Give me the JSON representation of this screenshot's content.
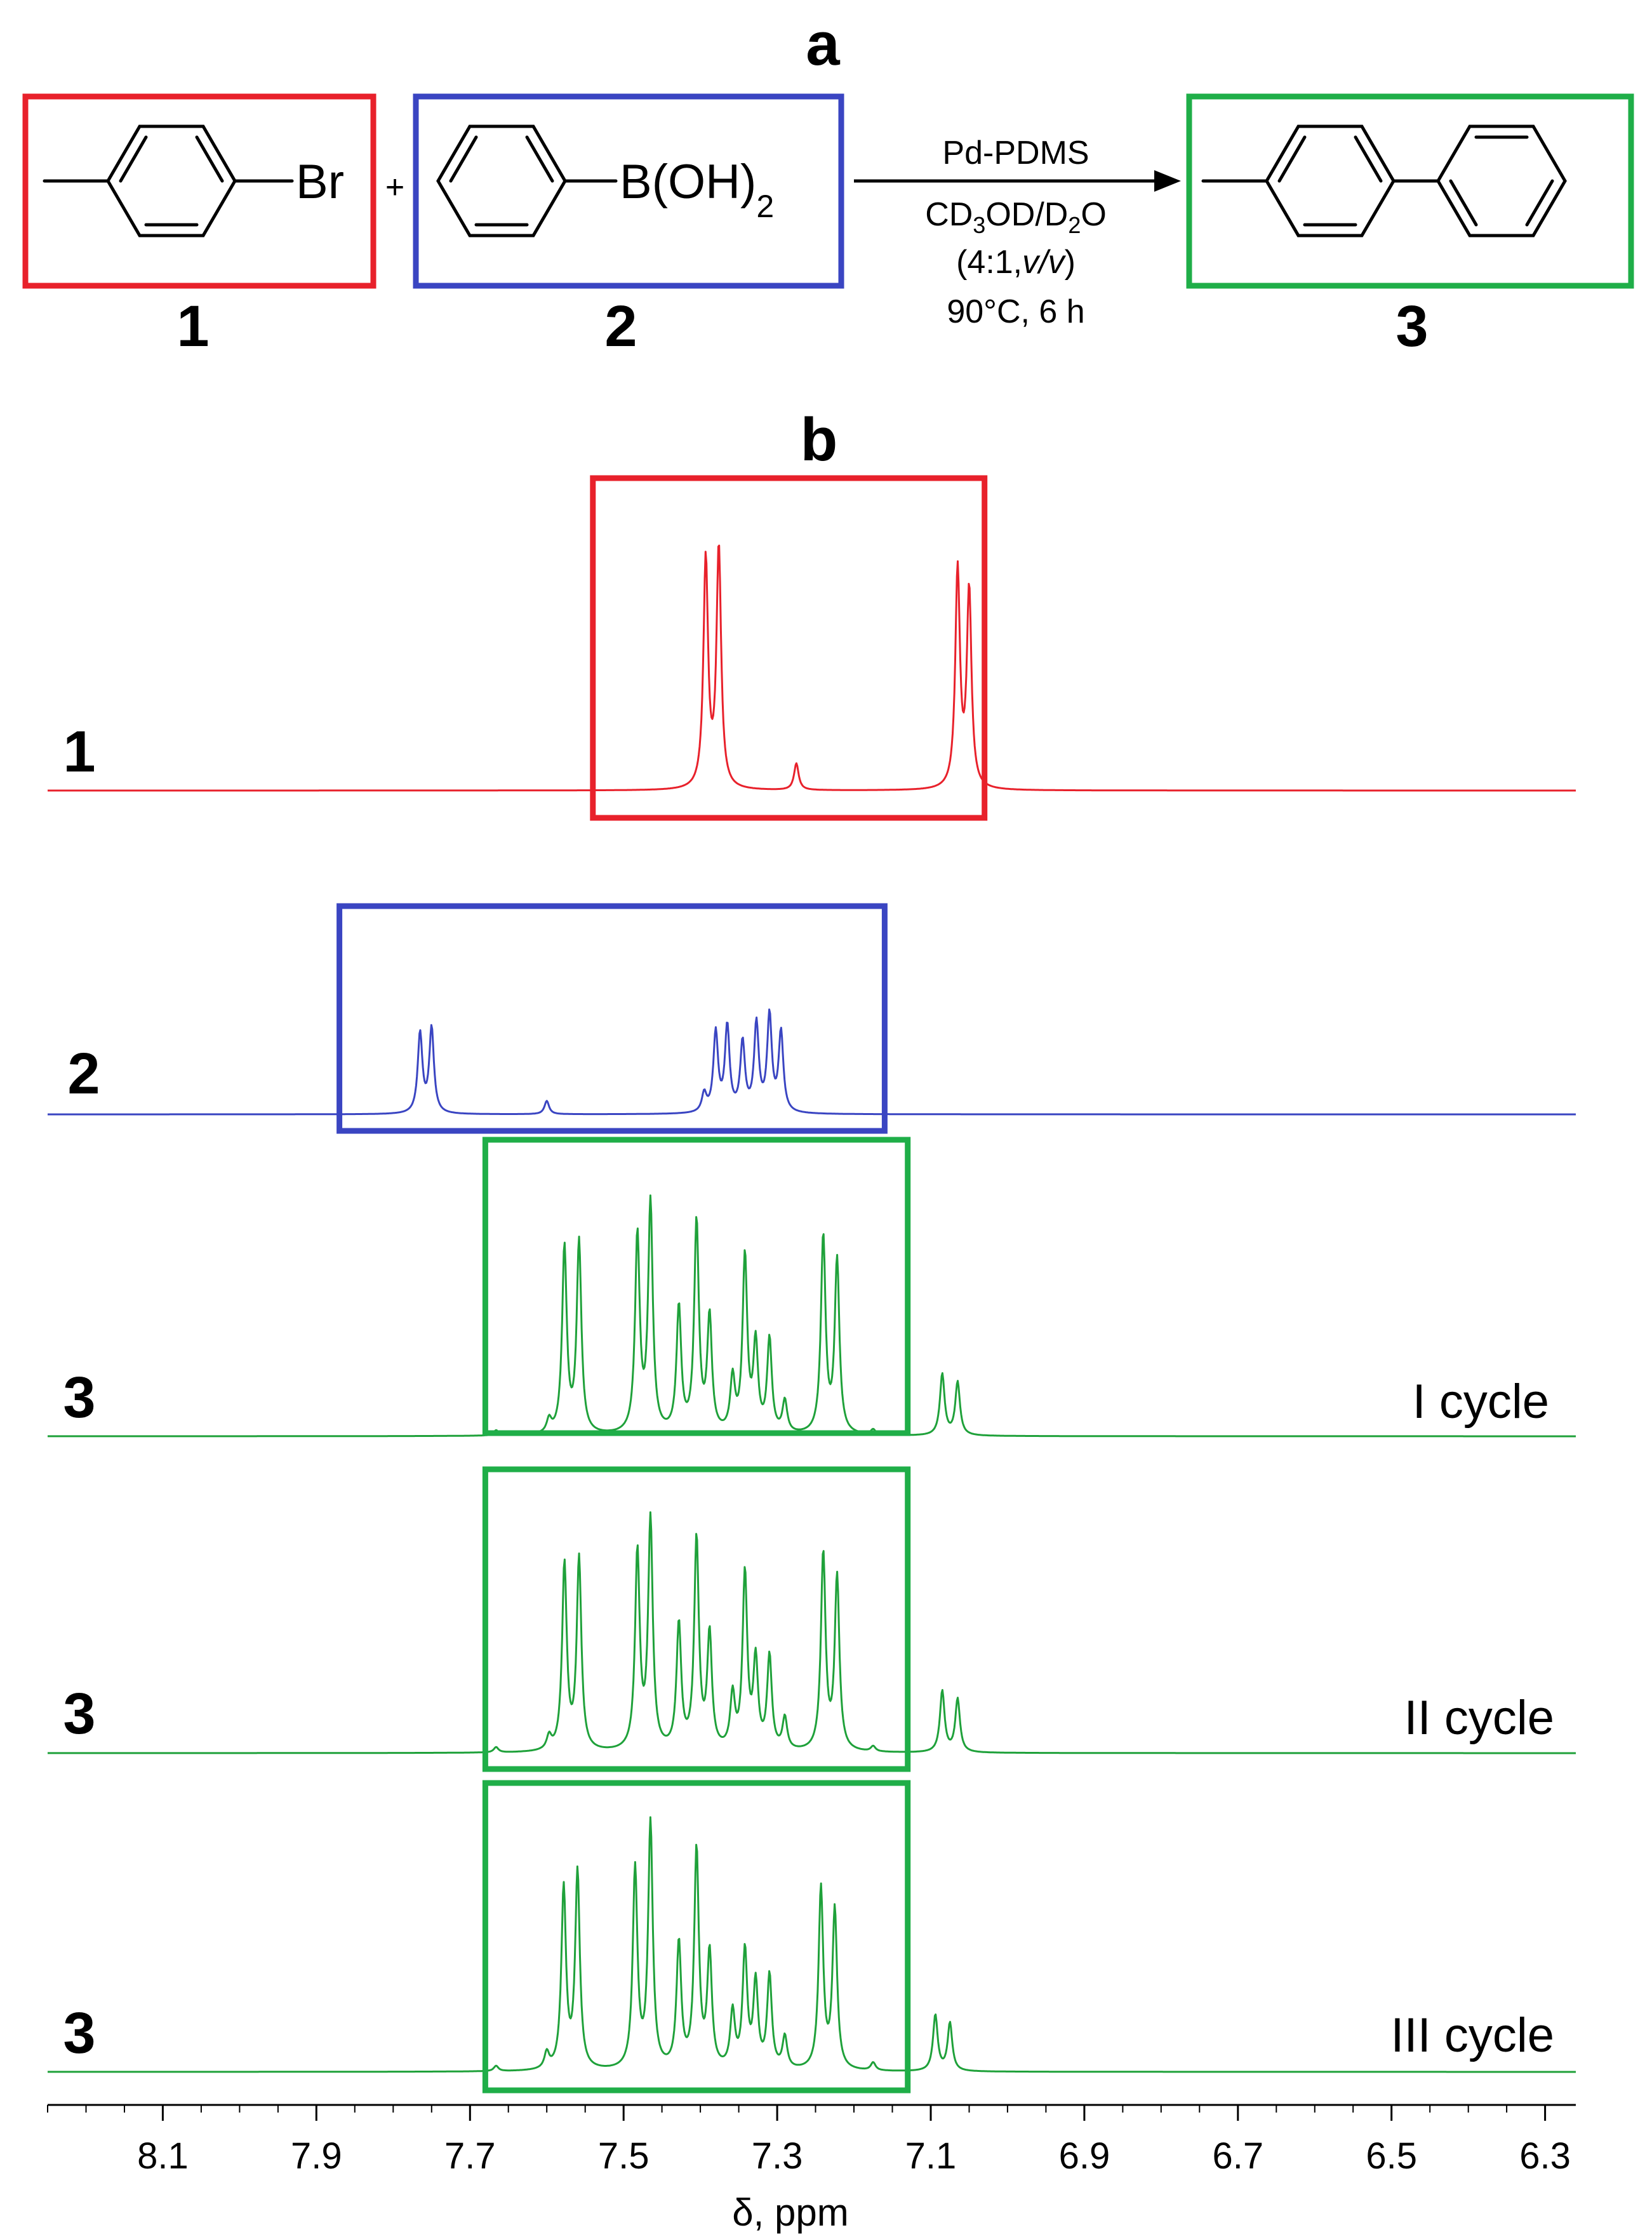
{
  "figure": {
    "panel_a": "a",
    "panel_b": "b",
    "compound_labels": [
      "1",
      "2",
      "3"
    ],
    "bromo_group": "Br",
    "boronic_group": "B(OH)",
    "boronic_sub": "2",
    "plus": "+",
    "catalyst": "Pd-PDMS",
    "solvent_parts": [
      "CD",
      "3",
      "OD/D",
      "2",
      "O"
    ],
    "ratio_prefix": "(4:1,",
    "ratio_italic": "v/v",
    "ratio_suffix": ")",
    "temperature_time": "90°C, 6 h",
    "box_colors": {
      "red": "#e8212b",
      "blue": "#3a45c2",
      "green": "#1fae48"
    }
  },
  "chart_data": {
    "type": "line",
    "title": "",
    "xlabel": "δ, ppm",
    "ylabel": "",
    "x_reversed": true,
    "xlim": [
      8.25,
      6.26
    ],
    "x_ticks": [
      8.1,
      7.9,
      7.7,
      7.5,
      7.3,
      7.1,
      6.9,
      6.7,
      6.5,
      6.3
    ],
    "x_tick_labels": [
      "8.1",
      "7.9",
      "7.7",
      "7.5",
      "7.3",
      "7.1",
      "6.9",
      "6.7",
      "6.5",
      "6.3"
    ],
    "series": [
      {
        "name": "1",
        "label": "1",
        "annotation": "",
        "color": "#e8212b",
        "box": [
          7.54,
          7.03
        ],
        "peaks": [
          [
            7.393,
            0.86
          ],
          [
            7.376,
            0.9
          ],
          [
            7.275,
            0.1
          ],
          [
            7.065,
            0.82
          ],
          [
            7.05,
            0.74
          ]
        ]
      },
      {
        "name": "2",
        "label": "2",
        "annotation": "",
        "color": "#3a45c2",
        "box": [
          7.87,
          7.16
        ],
        "peaks": [
          [
            7.765,
            0.3
          ],
          [
            7.75,
            0.32
          ],
          [
            7.6,
            0.05
          ],
          [
            7.395,
            0.07
          ],
          [
            7.38,
            0.3
          ],
          [
            7.365,
            0.32
          ],
          [
            7.345,
            0.26
          ],
          [
            7.327,
            0.33
          ],
          [
            7.31,
            0.36
          ],
          [
            7.295,
            0.3
          ]
        ]
      },
      {
        "name": "I cycle",
        "label": "3",
        "annotation": "I cycle",
        "color": "#1fa13a",
        "box": [
          7.68,
          7.13
        ],
        "peaks": [
          [
            7.666,
            0.02
          ],
          [
            7.597,
            0.05
          ],
          [
            7.577,
            0.7
          ],
          [
            7.558,
            0.72
          ],
          [
            7.482,
            0.74
          ],
          [
            7.465,
            0.86
          ],
          [
            7.428,
            0.47
          ],
          [
            7.405,
            0.79
          ],
          [
            7.388,
            0.43
          ],
          [
            7.358,
            0.2
          ],
          [
            7.342,
            0.66
          ],
          [
            7.328,
            0.33
          ],
          [
            7.31,
            0.35
          ],
          [
            7.29,
            0.12
          ],
          [
            7.24,
            0.74
          ],
          [
            7.222,
            0.65
          ],
          [
            7.175,
            0.02
          ],
          [
            7.085,
            0.23
          ],
          [
            7.065,
            0.2
          ]
        ]
      },
      {
        "name": "II cycle",
        "label": "3",
        "annotation": "II cycle",
        "color": "#1fa13a",
        "box": [
          7.68,
          7.13
        ],
        "peaks": [
          [
            7.666,
            0.02
          ],
          [
            7.597,
            0.05
          ],
          [
            7.577,
            0.7
          ],
          [
            7.558,
            0.72
          ],
          [
            7.482,
            0.74
          ],
          [
            7.465,
            0.86
          ],
          [
            7.428,
            0.47
          ],
          [
            7.405,
            0.79
          ],
          [
            7.388,
            0.43
          ],
          [
            7.358,
            0.2
          ],
          [
            7.342,
            0.66
          ],
          [
            7.328,
            0.33
          ],
          [
            7.31,
            0.35
          ],
          [
            7.29,
            0.12
          ],
          [
            7.24,
            0.74
          ],
          [
            7.222,
            0.65
          ],
          [
            7.175,
            0.02
          ],
          [
            7.085,
            0.23
          ],
          [
            7.065,
            0.2
          ]
        ]
      },
      {
        "name": "III cycle",
        "label": "3",
        "annotation": "III cycle",
        "color": "#1fa13a",
        "box": [
          7.68,
          7.13
        ],
        "peaks": [
          [
            7.666,
            0.02
          ],
          [
            7.6,
            0.06
          ],
          [
            7.578,
            0.68
          ],
          [
            7.56,
            0.74
          ],
          [
            7.485,
            0.75
          ],
          [
            7.465,
            0.92
          ],
          [
            7.428,
            0.47
          ],
          [
            7.405,
            0.82
          ],
          [
            7.388,
            0.43
          ],
          [
            7.358,
            0.21
          ],
          [
            7.342,
            0.44
          ],
          [
            7.328,
            0.32
          ],
          [
            7.31,
            0.35
          ],
          [
            7.29,
            0.12
          ],
          [
            7.243,
            0.68
          ],
          [
            7.225,
            0.6
          ],
          [
            7.175,
            0.03
          ],
          [
            7.094,
            0.21
          ],
          [
            7.075,
            0.18
          ]
        ]
      }
    ]
  }
}
